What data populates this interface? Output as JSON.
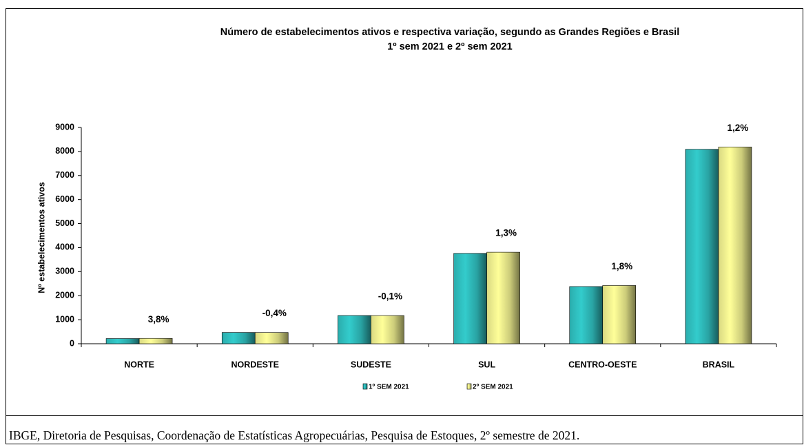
{
  "chart_data": {
    "type": "bar",
    "title": "Número de estabelecimentos ativos e respectiva variação, segundo as Grandes Regiões e Brasil",
    "subtitle": "1º sem 2021 e 2º sem 2021",
    "y_label": "Nº estabelecimentos  ativos",
    "categories": [
      "NORTE",
      "NORDESTE",
      "SUDESTE",
      "SUL",
      "CENTRO-OESTE",
      "BRASIL"
    ],
    "series": [
      {
        "name": "1º SEM 2021",
        "color": "#33cccc",
        "values": [
          215,
          470,
          1175,
          3760,
          2380,
          8090
        ]
      },
      {
        "name": "2º SEM 2021",
        "color": "#ffff99",
        "values": [
          223,
          468,
          1174,
          3809,
          2423,
          8187
        ]
      }
    ],
    "annotations": [
      "3,8%",
      "-0,4%",
      "-0,1%",
      "1,3%",
      "1,8%",
      "1,2%"
    ],
    "ylim": [
      0,
      9000
    ],
    "yticks": [
      0,
      1000,
      2000,
      3000,
      4000,
      5000,
      6000,
      7000,
      8000,
      9000
    ],
    "source": "IBGE, Diretoria de Pesquisas, Coordenação de Estatísticas Agropecuárias, Pesquisa de Estoques, 2º semestre de 2021."
  }
}
